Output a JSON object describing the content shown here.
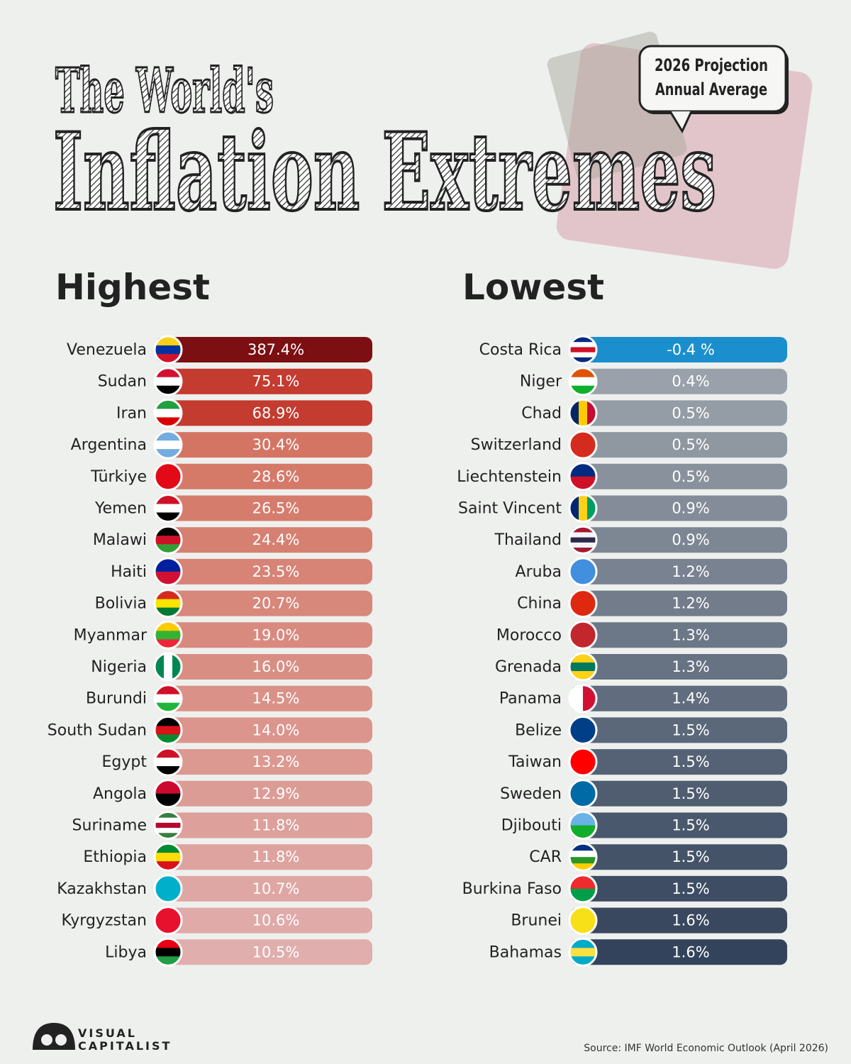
{
  "title": {
    "line1": "The World's",
    "line2": "Inflation Extremes"
  },
  "callout": {
    "line1": "2026 Projection",
    "line2": "Annual Average"
  },
  "highest": {
    "heading": "Highest",
    "rows": [
      [
        "Venezuela",
        "387.4%"
      ],
      [
        "Sudan",
        "75.1%"
      ],
      [
        "Iran",
        "68.9%"
      ],
      [
        "Argentina",
        "30.4%"
      ],
      [
        "Türkiye",
        "28.6%"
      ],
      [
        "Yemen",
        "26.5%"
      ],
      [
        "Malawi",
        "24.4%"
      ],
      [
        "Haiti",
        "23.5%"
      ],
      [
        "Bolivia",
        "20.7%"
      ],
      [
        "Myanmar",
        "19.0%"
      ],
      [
        "Nigeria",
        "16.0%"
      ],
      [
        "Burundi",
        "14.5%"
      ],
      [
        "South Sudan",
        "14.0%"
      ],
      [
        "Egypt",
        "13.2%"
      ],
      [
        "Angola",
        "12.9%"
      ],
      [
        "Suriname",
        "11.8%"
      ],
      [
        "Ethiopia",
        "11.8%"
      ],
      [
        "Kazakhstan",
        "10.7%"
      ],
      [
        "Kyrgyzstan",
        "10.6%"
      ],
      [
        "Libya",
        "10.5%"
      ]
    ]
  },
  "lowest": {
    "heading": "Lowest",
    "rows": [
      [
        "Costa Rica",
        "-0.4 %"
      ],
      [
        "Niger",
        "0.4%"
      ],
      [
        "Chad",
        "0.5%"
      ],
      [
        "Switzerland",
        "0.5%"
      ],
      [
        "Liechtenstein",
        "0.5%"
      ],
      [
        "Saint Vincent",
        "0.9%"
      ],
      [
        "Thailand",
        "0.9%"
      ],
      [
        "Aruba",
        "1.2%"
      ],
      [
        "China",
        "1.2%"
      ],
      [
        "Morocco",
        "1.3%"
      ],
      [
        "Grenada",
        "1.3%"
      ],
      [
        "Panama",
        "1.4%"
      ],
      [
        "Belize",
        "1.5%"
      ],
      [
        "Taiwan",
        "1.5%"
      ],
      [
        "Sweden",
        "1.5%"
      ],
      [
        "Djibouti",
        "1.5%"
      ],
      [
        "CAR",
        "1.5%"
      ],
      [
        "Burkina Faso",
        "1.5%"
      ],
      [
        "Brunei",
        "1.6%"
      ],
      [
        "Bahamas",
        "1.6%"
      ]
    ]
  },
  "brand": {
    "line1": "VISUAL",
    "line2": "CAPITALIST"
  },
  "source": "Source: IMF World Economic Outlook (April 2026)"
}
